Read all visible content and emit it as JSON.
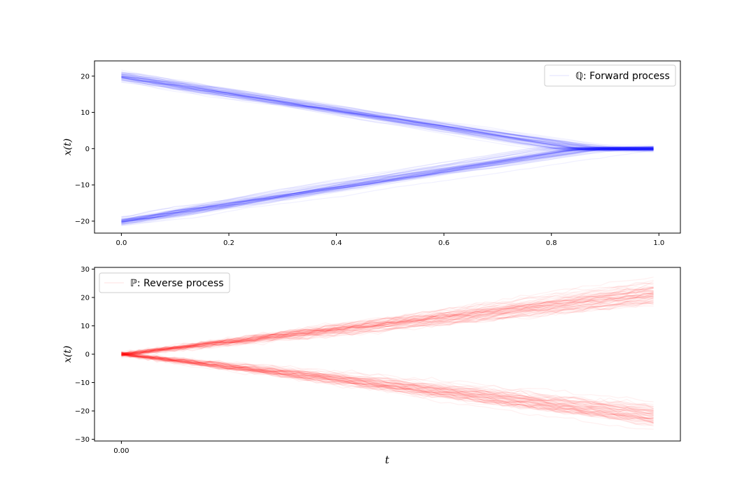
{
  "chart_data": [
    {
      "type": "line",
      "panel": "top",
      "xlabel": "",
      "ylabel": "x(t)",
      "legend": {
        "label": "ℚ: Forward process",
        "placement": "upper right"
      },
      "color": "#0000ff",
      "xlim": [
        -0.05,
        1.04
      ],
      "ylim": [
        -23.3,
        24.2
      ],
      "x_ticks": [
        0.0,
        0.2,
        0.4,
        0.6,
        0.8,
        1.0
      ],
      "x_tick_labels": [
        "0.0",
        "0.2",
        "0.4",
        "0.6",
        "0.8",
        "1.0"
      ],
      "y_ticks": [
        20,
        10,
        0,
        -10,
        -20
      ],
      "y_tick_labels": [
        "20",
        "10",
        "0",
        "−10",
        "−20"
      ],
      "series": [
        {
          "x": [
            0.0,
            0.2,
            0.4,
            0.6,
            0.8,
            0.9,
            0.99
          ],
          "y_mean": [
            20,
            15.5,
            11,
            6.5,
            2,
            0.3,
            0
          ]
        },
        {
          "x": [
            0.0,
            0.2,
            0.4,
            0.6,
            0.8,
            0.9,
            0.99
          ],
          "y_mean": [
            -20,
            -15.5,
            -11,
            -6.5,
            -2,
            -0.3,
            0
          ]
        }
      ]
    },
    {
      "type": "line",
      "panel": "bottom",
      "xlabel": "t",
      "ylabel": "x(t)",
      "legend": {
        "label": "ℙ: Reverse process",
        "placement": "upper left"
      },
      "color": "#ff0000",
      "xlim": [
        -0.05,
        1.04
      ],
      "ylim": [
        -30.6,
        30.6
      ],
      "x_ticks": [
        0.0
      ],
      "x_tick_labels": [
        "0.00"
      ],
      "y_ticks": [
        30,
        20,
        10,
        0,
        -10,
        -20,
        -30
      ],
      "y_tick_labels": [
        "30",
        "20",
        "10",
        "0",
        "−10",
        "−20",
        "−30"
      ],
      "series": [
        {
          "x": [
            0.0,
            0.2,
            0.4,
            0.6,
            0.8,
            0.99
          ],
          "y_mean": [
            0,
            5,
            9.5,
            13.5,
            17.5,
            21.5
          ]
        },
        {
          "x": [
            0.0,
            0.2,
            0.4,
            0.6,
            0.8,
            0.99
          ],
          "y_mean": [
            0,
            -5,
            -9.5,
            -13.5,
            -17.5,
            -21.5
          ]
        }
      ]
    }
  ]
}
